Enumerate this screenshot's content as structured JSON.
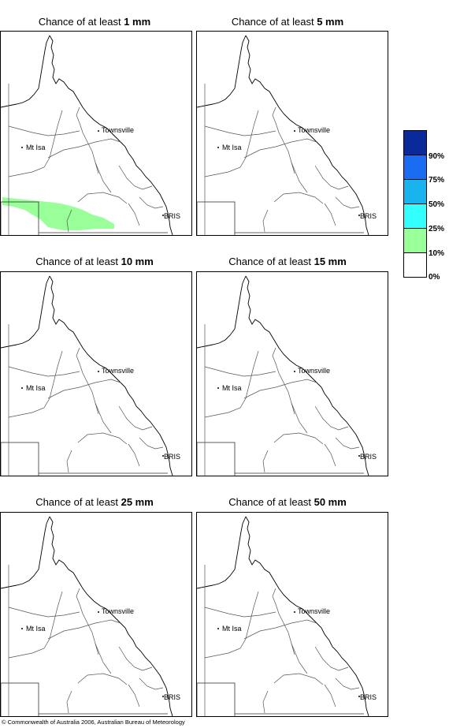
{
  "panels": [
    {
      "prefix": "Chance of at least ",
      "amount": "1 mm"
    },
    {
      "prefix": "Chance of at least ",
      "amount": "5 mm"
    },
    {
      "prefix": "Chance of at least ",
      "amount": "10 mm"
    },
    {
      "prefix": "Chance of at least ",
      "amount": "15 mm"
    },
    {
      "prefix": "Chance of at least ",
      "amount": "25 mm"
    },
    {
      "prefix": "Chance of at least ",
      "amount": "50 mm"
    }
  ],
  "cities": {
    "townsville": "Townsville",
    "mt_isa": "Mt Isa",
    "bris": "BRIS"
  },
  "legend": {
    "labels": [
      "90%",
      "75%",
      "50%",
      "25%",
      "10%",
      "0%"
    ],
    "colors": [
      "#0a2a9a",
      "#1a6cf0",
      "#19b4ee",
      "#33ffff",
      "#99ff99",
      "#ffffff"
    ]
  },
  "copyright": "© Commonwealth of Australia 2006, Australian Bureau of Meteorology"
}
